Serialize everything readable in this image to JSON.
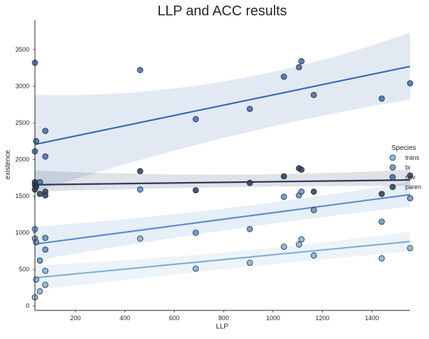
{
  "chart_data": {
    "type": "scatter",
    "title": "LLP and ACC results",
    "xlabel": "LLP",
    "ylabel": "existence",
    "xlim": [
      36,
      1555
    ],
    "ylim": [
      -60,
      3900
    ],
    "xticks": [
      200,
      400,
      600,
      800,
      1000,
      1200,
      1400
    ],
    "yticks": [
      0,
      500,
      1000,
      1500,
      2000,
      2500,
      3000,
      3500
    ],
    "grid": false,
    "legend": {
      "title": "Species",
      "placement": "center-right"
    },
    "series": [
      {
        "name": "trans",
        "color": "#7eb0d8",
        "points": [
          [
            36,
            120
          ],
          [
            41,
            360
          ],
          [
            56,
            200
          ],
          [
            78,
            480
          ],
          [
            78,
            290
          ],
          [
            462,
            920
          ],
          [
            687,
            510
          ],
          [
            906,
            590
          ],
          [
            1044,
            810
          ],
          [
            1105,
            840
          ],
          [
            1115,
            910
          ],
          [
            1165,
            690
          ],
          [
            1440,
            650
          ],
          [
            1555,
            790
          ]
        ],
        "fit": {
          "start": 385,
          "end": 880
        },
        "band": {
          "lo_start": 215,
          "hi_start": 555,
          "lo_end": 745,
          "hi_end": 1015,
          "lo_mid": 520,
          "hi_mid": 670
        }
      },
      {
        "name": "bi",
        "color": "#5a8fca",
        "points": [
          [
            36,
            1050
          ],
          [
            36,
            920
          ],
          [
            41,
            870
          ],
          [
            56,
            620
          ],
          [
            78,
            930
          ],
          [
            78,
            770
          ],
          [
            462,
            1590
          ],
          [
            687,
            1000
          ],
          [
            906,
            1050
          ],
          [
            1044,
            1490
          ],
          [
            1105,
            1510
          ],
          [
            1115,
            1560
          ],
          [
            1165,
            1310
          ],
          [
            1440,
            1150
          ],
          [
            1555,
            1470
          ]
        ],
        "fit": {
          "start": 845,
          "end": 1520
        },
        "band": {
          "lo_start": 620,
          "hi_start": 1080,
          "lo_end": 1355,
          "hi_end": 1690,
          "lo_mid": 1070,
          "hi_mid": 1270
        }
      },
      {
        "name": "nov",
        "color": "#3b6bb0",
        "points": [
          [
            36,
            3320
          ],
          [
            41,
            2250
          ],
          [
            36,
            2110
          ],
          [
            78,
            2390
          ],
          [
            78,
            2040
          ],
          [
            56,
            1690
          ],
          [
            462,
            3220
          ],
          [
            687,
            2550
          ],
          [
            906,
            2690
          ],
          [
            1044,
            3130
          ],
          [
            1105,
            3260
          ],
          [
            1115,
            3340
          ],
          [
            1165,
            2880
          ],
          [
            1440,
            2830
          ],
          [
            1555,
            3040
          ]
        ],
        "fit": {
          "start": 2205,
          "end": 3270
        },
        "band": {
          "lo_start": 1560,
          "hi_start": 2880,
          "lo_end": 2820,
          "hi_end": 3730,
          "lo_mid": 2390,
          "hi_mid": 2820
        }
      },
      {
        "name": "paren",
        "color": "#2a3a5c",
        "points": [
          [
            36,
            1690
          ],
          [
            36,
            1650
          ],
          [
            41,
            1630
          ],
          [
            36,
            1590
          ],
          [
            56,
            1530
          ],
          [
            78,
            1560
          ],
          [
            78,
            1510
          ],
          [
            462,
            1840
          ],
          [
            687,
            1580
          ],
          [
            906,
            1680
          ],
          [
            1044,
            1770
          ],
          [
            1105,
            1880
          ],
          [
            1115,
            1860
          ],
          [
            1165,
            1560
          ],
          [
            1440,
            1530
          ],
          [
            1555,
            1780
          ]
        ],
        "fit": {
          "start": 1655,
          "end": 1720
        },
        "band": {
          "lo_start": 1560,
          "hi_start": 1850,
          "lo_end": 1640,
          "hi_end": 1860,
          "lo_mid": 1640,
          "hi_mid": 1730
        }
      }
    ]
  }
}
